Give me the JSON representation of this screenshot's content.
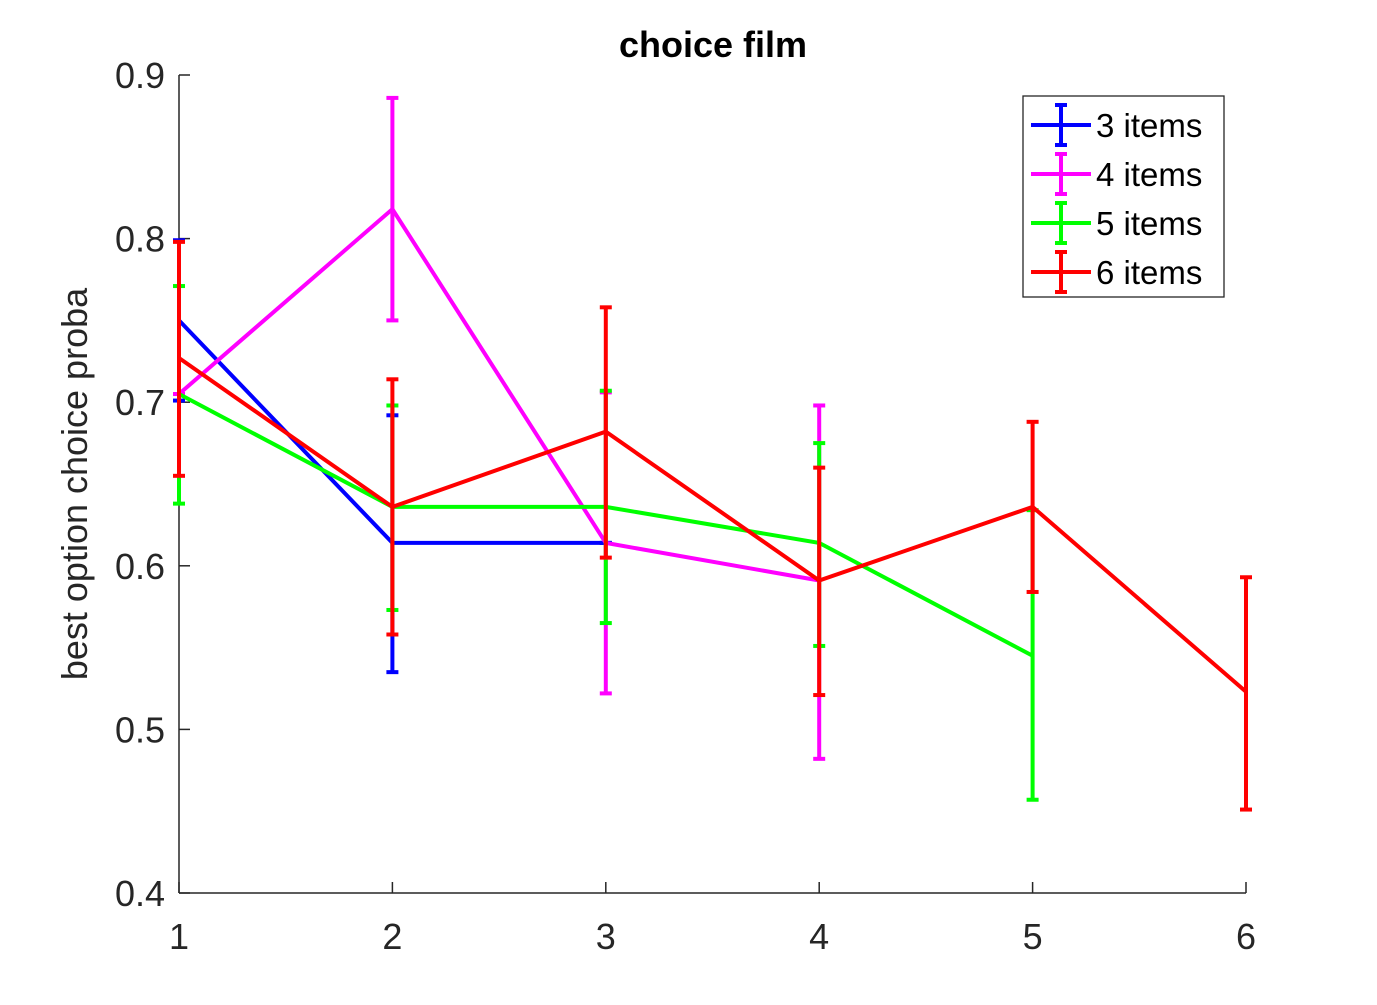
{
  "chart_data": {
    "type": "line",
    "title": "choice film",
    "xlabel": "",
    "ylabel": "best option choice proba",
    "xlim": [
      1,
      6
    ],
    "ylim": [
      0.4,
      0.9
    ],
    "xticks": [
      "1",
      "2",
      "3",
      "4",
      "5",
      "6"
    ],
    "yticks": [
      "0.4",
      "0.5",
      "0.6",
      "0.7",
      "0.8",
      "0.9"
    ],
    "grid": false,
    "legend_position": "top-right",
    "error_bars": true,
    "series": [
      {
        "name": "3 items",
        "color": "#0000ff",
        "x": [
          1,
          2,
          3
        ],
        "y": [
          0.75,
          0.614,
          0.614
        ],
        "err_low": [
          0.701,
          0.535,
          0.614
        ],
        "err_high": [
          0.799,
          0.692,
          0.614
        ]
      },
      {
        "name": "4 items",
        "color": "#ff00ff",
        "x": [
          1,
          2,
          3,
          4
        ],
        "y": [
          0.705,
          0.818,
          0.614,
          0.591
        ],
        "err_low": [
          0.705,
          0.75,
          0.522,
          0.482
        ],
        "err_high": [
          0.705,
          0.886,
          0.706,
          0.698
        ]
      },
      {
        "name": "5 items",
        "color": "#00ff00",
        "x": [
          1,
          2,
          3,
          4,
          5
        ],
        "y": [
          0.705,
          0.636,
          0.636,
          0.614,
          0.545
        ],
        "err_low": [
          0.638,
          0.573,
          0.565,
          0.551,
          0.457
        ],
        "err_high": [
          0.771,
          0.698,
          0.707,
          0.675,
          0.634
        ]
      },
      {
        "name": "6 items",
        "color": "#ff0000",
        "x": [
          1,
          2,
          3,
          4,
          5,
          6
        ],
        "y": [
          0.727,
          0.636,
          0.682,
          0.591,
          0.636,
          0.523
        ],
        "err_low": [
          0.655,
          0.558,
          0.605,
          0.521,
          0.584,
          0.451
        ],
        "err_high": [
          0.798,
          0.714,
          0.758,
          0.66,
          0.688,
          0.593
        ]
      }
    ]
  }
}
